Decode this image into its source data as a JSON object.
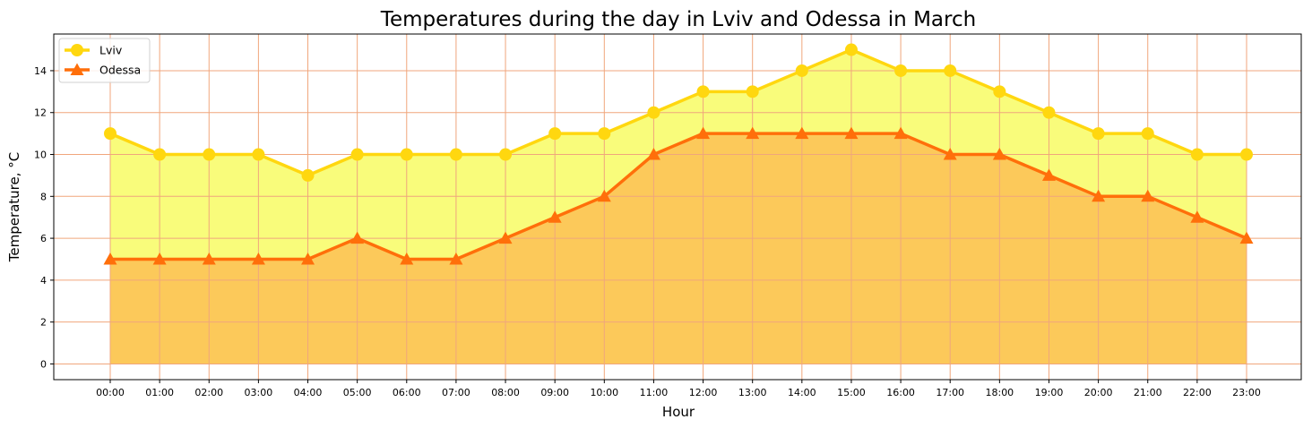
{
  "chart_data": {
    "type": "area",
    "title": "Temperatures during the day in Lviv and Odessa in March",
    "xlabel": "Hour",
    "ylabel": "Temperature, °C",
    "categories": [
      "00:00",
      "01:00",
      "02:00",
      "03:00",
      "04:00",
      "05:00",
      "06:00",
      "07:00",
      "08:00",
      "09:00",
      "10:00",
      "11:00",
      "12:00",
      "13:00",
      "14:00",
      "15:00",
      "16:00",
      "17:00",
      "18:00",
      "19:00",
      "20:00",
      "21:00",
      "22:00",
      "23:00"
    ],
    "yticks": [
      0,
      2,
      4,
      6,
      8,
      10,
      12,
      14
    ],
    "ylim": [
      -0.75,
      15.75
    ],
    "grid": true,
    "legend_position": "top-left",
    "series": [
      {
        "name": "Lviv",
        "marker": "circle",
        "color": "#ffd70f",
        "fill": "#f9fc7b",
        "values": [
          11,
          10,
          10,
          10,
          9,
          10,
          10,
          10,
          10,
          11,
          11,
          12,
          13,
          13,
          14,
          15,
          14,
          14,
          13,
          12,
          11,
          11,
          10,
          10
        ]
      },
      {
        "name": "Odessa",
        "marker": "triangle",
        "color": "#ff6f0a",
        "fill": "#fcc95a",
        "values": [
          5,
          5,
          5,
          5,
          5,
          6,
          5,
          5,
          6,
          7,
          8,
          10,
          11,
          11,
          11,
          11,
          11,
          10,
          10,
          9,
          8,
          8,
          7,
          6
        ]
      }
    ],
    "grid_color": "#f0a67c"
  }
}
